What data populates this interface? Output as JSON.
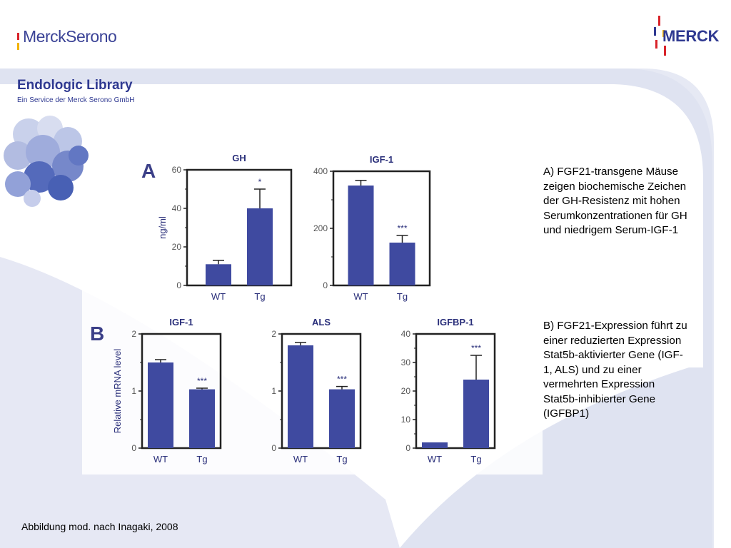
{
  "header": {
    "merck_serono_logo": "MerckSerono",
    "merck_logo": "MERCK",
    "library_title": "Endologic Library",
    "library_subtitle": "Ein Service der Merck Serono GmbH"
  },
  "colors": {
    "bar": "#3f4aa0",
    "brand": "#2f3991",
    "background_swoosh": "#dfe3f1",
    "logo_red": "#d8232a",
    "logo_yellow": "#f2b300"
  },
  "panels": {
    "a_label": "A",
    "b_label": "B"
  },
  "captions": {
    "a": "A) FGF21-transgene Mäuse zeigen biochemische Zeichen der GH-Resistenz mit hohen Serumkonzentrationen für GH und niedrigem Serum-IGF-1",
    "b": "B) FGF21-Expression führt zu einer reduzierten Expression Stat5b-aktivierter Gene (IGF-1, ALS) und zu einer vermehrten Expression Stat5b-inhibierter Gene (IGFBP1)"
  },
  "footer": {
    "source": "Abbildung mod. nach Inagaki, 2008"
  },
  "chart_data": [
    {
      "type": "bar",
      "panel": "A",
      "title": "GH",
      "ylabel": "ng/ml",
      "categories": [
        "WT",
        "Tg"
      ],
      "values": [
        11,
        40
      ],
      "errors": [
        2,
        10
      ],
      "significance": [
        "",
        "*"
      ],
      "ylim": [
        0,
        60
      ],
      "yticks": [
        0,
        20,
        40,
        60
      ]
    },
    {
      "type": "bar",
      "panel": "A",
      "title": "IGF-1",
      "ylabel": "",
      "categories": [
        "WT",
        "Tg"
      ],
      "values": [
        350,
        150
      ],
      "errors": [
        18,
        25
      ],
      "significance": [
        "",
        "***"
      ],
      "ylim": [
        0,
        400
      ],
      "yticks": [
        0,
        200,
        400
      ]
    },
    {
      "type": "bar",
      "panel": "B",
      "title": "IGF-1",
      "ylabel": "Relative mRNA level",
      "categories": [
        "WT",
        "Tg"
      ],
      "values": [
        1.5,
        1.03
      ],
      "errors": [
        0.05,
        0.02
      ],
      "significance": [
        "",
        "***"
      ],
      "ylim": [
        0,
        2
      ],
      "yticks": [
        0,
        1,
        2
      ]
    },
    {
      "type": "bar",
      "panel": "B",
      "title": "ALS",
      "ylabel": "",
      "categories": [
        "WT",
        "Tg"
      ],
      "values": [
        1.8,
        1.03
      ],
      "errors": [
        0.05,
        0.05
      ],
      "significance": [
        "",
        "***"
      ],
      "ylim": [
        0,
        2
      ],
      "yticks": [
        0,
        1,
        2
      ]
    },
    {
      "type": "bar",
      "panel": "B",
      "title": "IGFBP-1",
      "ylabel": "",
      "categories": [
        "WT",
        "Tg"
      ],
      "values": [
        2,
        24
      ],
      "errors": [
        0,
        8.5
      ],
      "significance": [
        "",
        "***"
      ],
      "ylim": [
        0,
        40
      ],
      "yticks": [
        0,
        10,
        20,
        30,
        40
      ]
    }
  ]
}
